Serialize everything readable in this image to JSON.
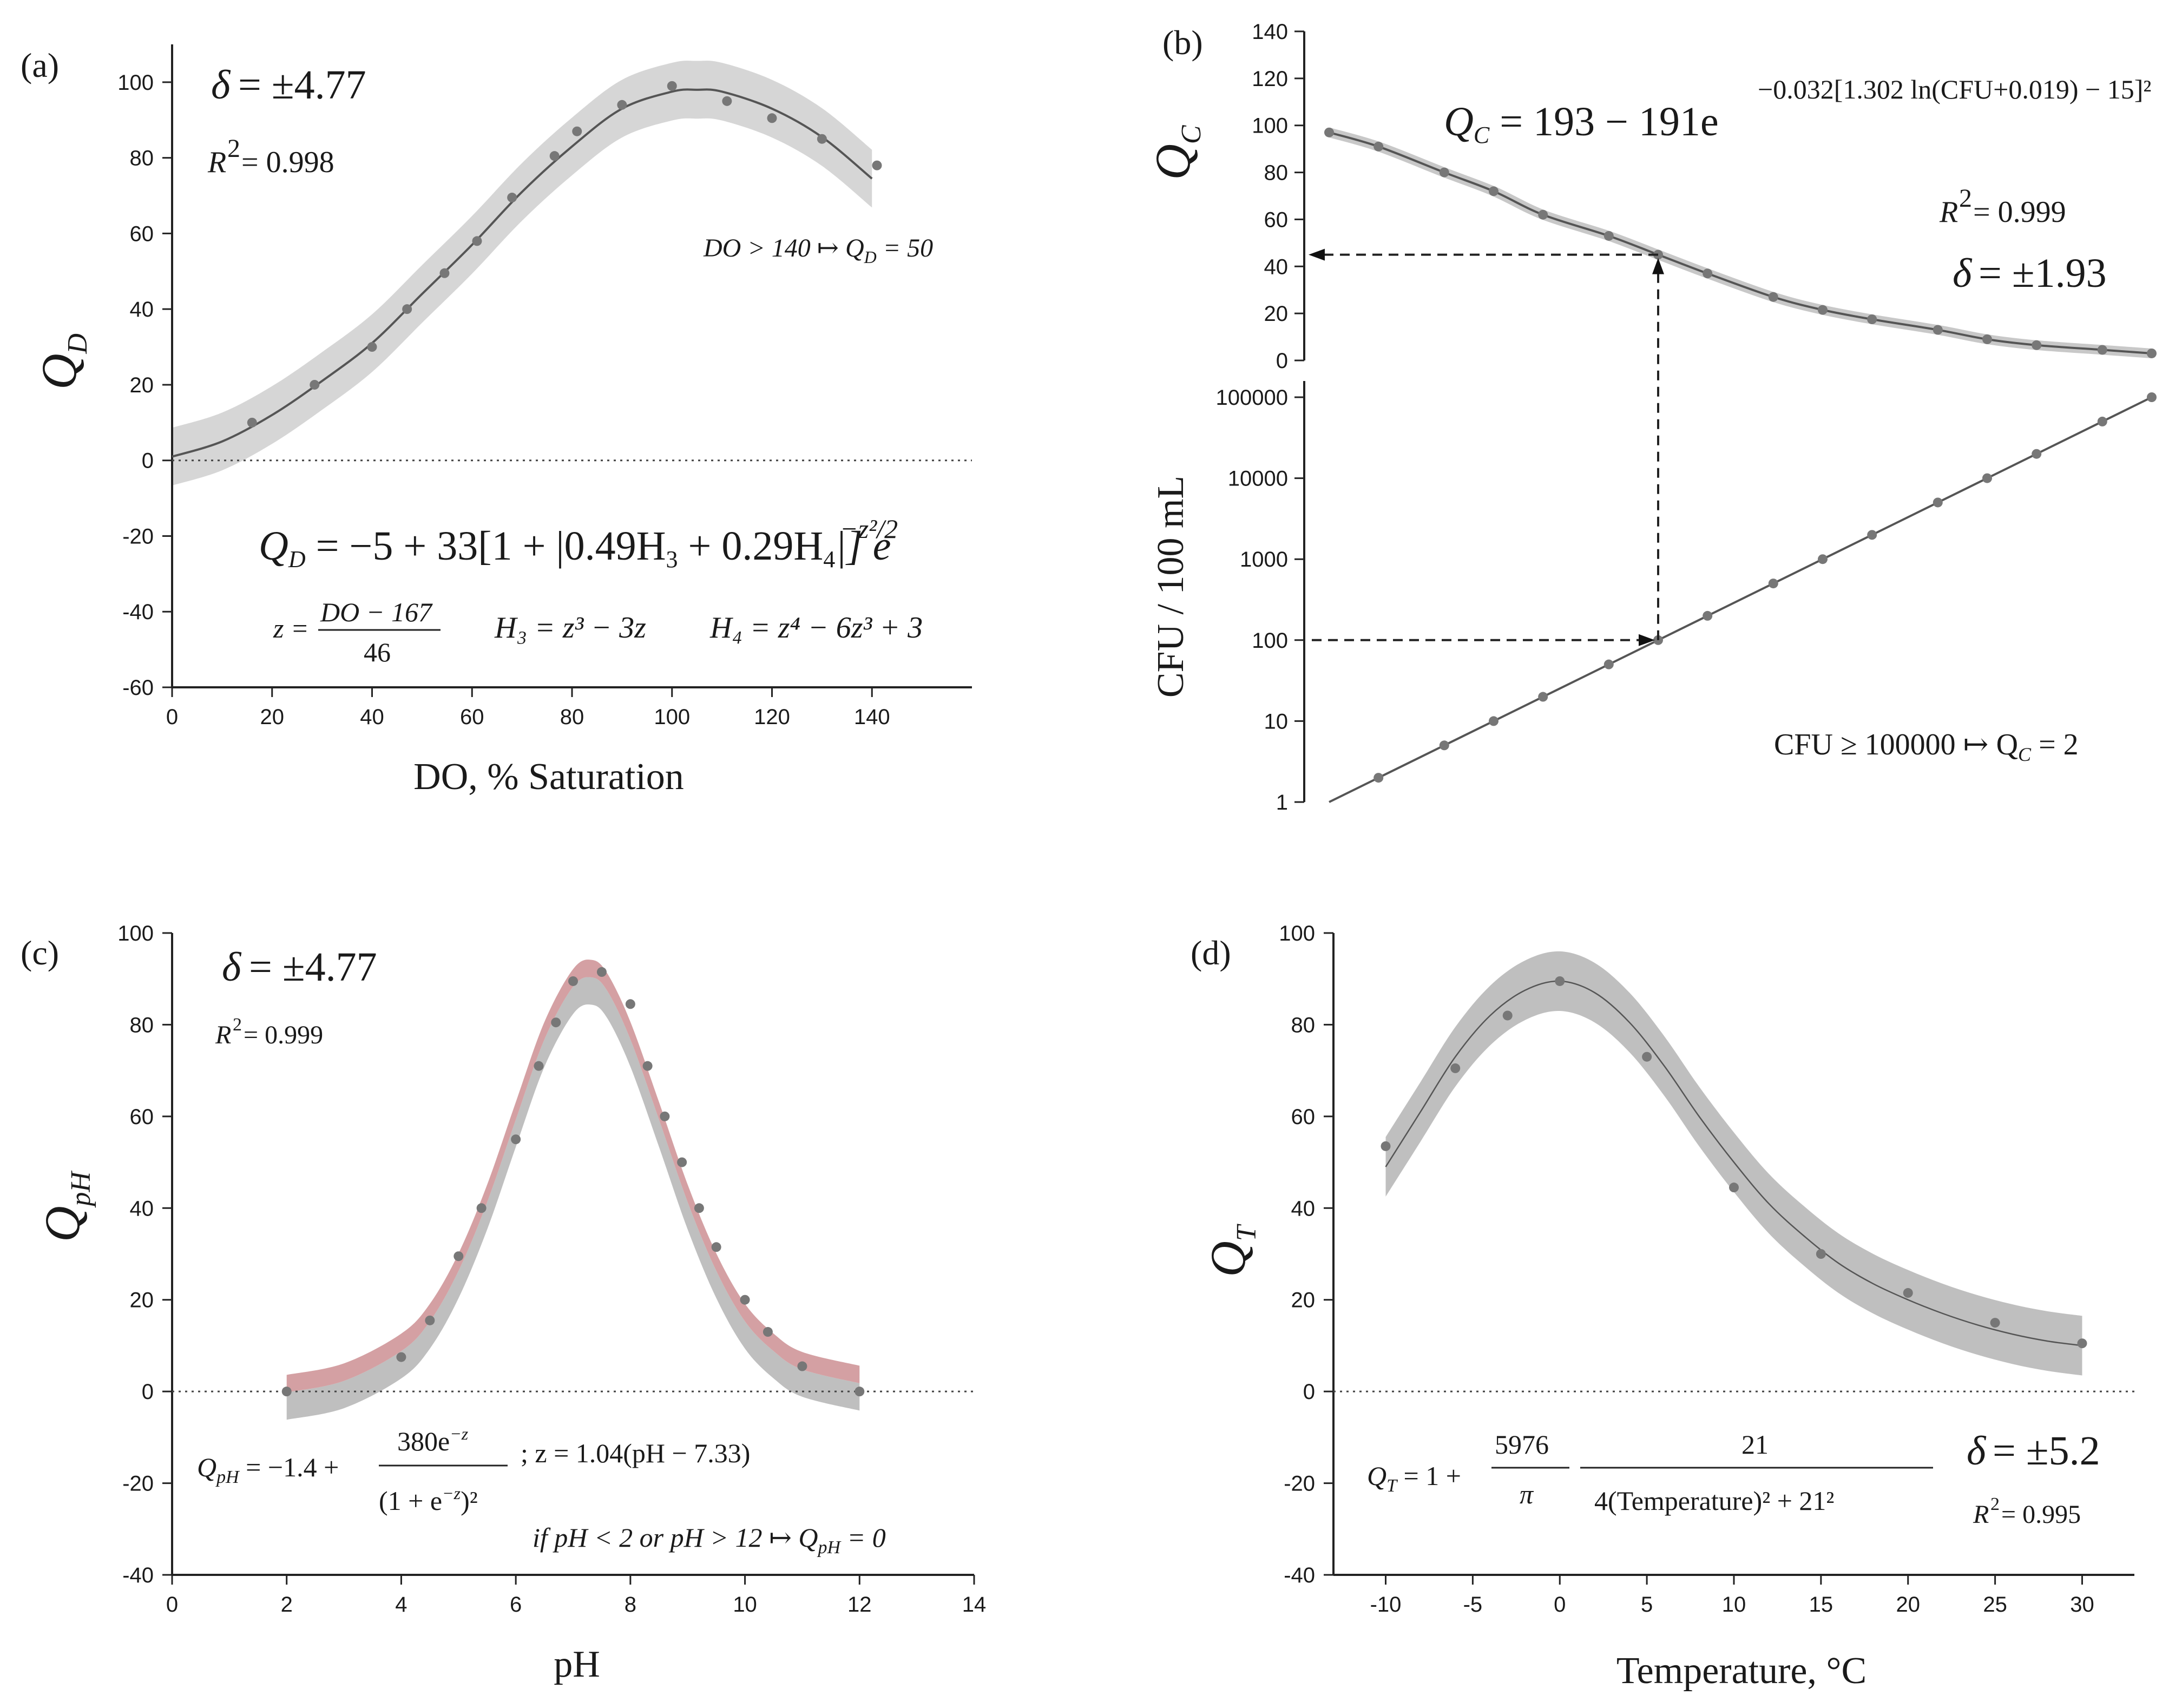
{
  "chart_data": [
    {
      "panel": "(a)",
      "type": "scatter",
      "xlabel": "DO, % Saturation",
      "ylabel_main": "Q",
      "ylabel_sub": "D",
      "xlim": [
        0,
        160
      ],
      "ylim": [
        -60,
        110
      ],
      "xticks": [
        0,
        20,
        40,
        60,
        80,
        100,
        120,
        140
      ],
      "yticks": [
        -60,
        -40,
        -20,
        0,
        20,
        40,
        60,
        80,
        100
      ],
      "points": {
        "x": [
          16,
          28.5,
          40,
          47,
          54.5,
          61,
          68,
          76.5,
          81,
          90,
          100,
          111,
          120,
          130,
          141
        ],
        "y": [
          10,
          20,
          30,
          40,
          49.5,
          58,
          69.5,
          80.5,
          87,
          94,
          99,
          95,
          90.5,
          85,
          78
        ]
      },
      "fit": {
        "x": [
          0,
          10,
          20,
          30,
          40,
          50,
          60,
          70,
          80,
          90,
          100,
          105,
          110,
          120,
          130,
          140
        ],
        "y": [
          1,
          5,
          12,
          21,
          31,
          44,
          57,
          71,
          83,
          93,
          97.5,
          98,
          97.5,
          93,
          85.5,
          74.5
        ],
        "band_halfwidth": 4.77
      },
      "annotations": {
        "delta": "δ = ±4.77",
        "r2": "R² = 0.998",
        "rule": "DO > 140 ↦ Q_D = 50",
        "equation_main": "Q_D = −5 + 33[1 + |0.49H₃ + 0.29H₄|] e^(−z²/2)",
        "equation_vars": "z = (DO − 167)/46     H₃ = z³ − 3z     H₄ = z⁴ − 6z³ + 3"
      }
    },
    {
      "panel": "(b)",
      "type": "line",
      "title": "",
      "top": {
        "ylabel_main": "Q",
        "ylabel_sub": "C",
        "ylim": [
          0,
          140
        ],
        "yticks": [
          0,
          20,
          40,
          60,
          80,
          100,
          120,
          140
        ],
        "x_log10": [
          0,
          0.3,
          0.7,
          1,
          1.3,
          1.7,
          2,
          2.3,
          2.7,
          3,
          3.3,
          3.7,
          4,
          4.3,
          4.7,
          5
        ],
        "y": [
          97,
          91,
          80,
          72,
          62,
          53,
          45,
          37,
          27,
          21.5,
          17.5,
          13,
          9,
          6.5,
          4.5,
          3
        ]
      },
      "bottom": {
        "ylabel": "CFU / 100 mL",
        "yticks": [
          "1",
          "10",
          "100",
          "1000",
          "10000",
          "100000"
        ],
        "points_log10_cfu": [
          0.3,
          0.7,
          1,
          1.3,
          1.7,
          2,
          2.3,
          2.7,
          3,
          3.3,
          3.7,
          4,
          4.3,
          4.7,
          5
        ]
      },
      "guide": {
        "cfu": 100,
        "qc": 45
      },
      "annotations": {
        "equation": "Q_C = 193 − 191e^(−0.032[1.302 ln(CFU+0.019) − 15]²)",
        "r2": "R² = 0.999",
        "delta": "δ = ±1.93",
        "rule": "CFU ≥ 100000 ↦ Q_C = 2"
      }
    },
    {
      "panel": "(c)",
      "type": "scatter",
      "xlabel": "pH",
      "ylabel_main": "Q",
      "ylabel_sub": "pH",
      "xlim": [
        0,
        14
      ],
      "ylim": [
        -40,
        100
      ],
      "xticks": [
        0,
        2,
        4,
        6,
        8,
        10,
        12,
        14
      ],
      "yticks": [
        -40,
        -20,
        0,
        20,
        40,
        60,
        80,
        100
      ],
      "points": {
        "x": [
          2,
          4,
          4.5,
          5,
          5.4,
          6,
          6.4,
          6.7,
          7,
          7.5,
          8,
          8.3,
          8.6,
          8.9,
          9.2,
          9.5,
          10,
          10.4,
          11,
          12
        ],
        "y": [
          0,
          7.5,
          15.5,
          29.5,
          40,
          55,
          71,
          80.5,
          89.5,
          91.5,
          84.5,
          71,
          60,
          50,
          40,
          31.5,
          20,
          13,
          5.5,
          0
        ]
      },
      "fit": {
        "x": [
          2,
          3,
          4,
          4.5,
          5,
          5.5,
          6,
          6.5,
          7,
          7.33,
          7.6,
          8,
          8.5,
          9,
          9.5,
          10,
          10.5,
          11,
          12
        ],
        "y": [
          1,
          3.5,
          10,
          16.5,
          27.5,
          42.5,
          60.5,
          78,
          89.5,
          91.5,
          88.5,
          78,
          60.5,
          42.5,
          27.5,
          16.5,
          10,
          6,
          3
        ],
        "band_halfwidth": 4.77
      },
      "annotations": {
        "delta": "δ = ±4.77",
        "r2": "R² = 0.999",
        "equation": "Q_pH = −1.4 + 380e^(−z)/(1 + e^(−z))² ; z = 1.04(pH − 7.33)",
        "rule": "if pH < 2 or pH > 12 ↦ Q_pH = 0"
      }
    },
    {
      "panel": "(d)",
      "type": "scatter",
      "xlabel": "Temperature, °C",
      "ylabel_main": "Q",
      "ylabel_sub": "T",
      "xlim": [
        -13,
        33
      ],
      "ylim": [
        -40,
        100
      ],
      "xticks": [
        -10,
        -5,
        0,
        5,
        10,
        15,
        20,
        25,
        30
      ],
      "yticks": [
        -40,
        -20,
        0,
        20,
        40,
        60,
        80,
        100
      ],
      "points": {
        "x": [
          -10,
          -6,
          -3,
          0,
          5,
          10,
          15,
          20,
          25,
          30
        ],
        "y": [
          53.5,
          70.5,
          82,
          89.5,
          73,
          44.5,
          30,
          21.5,
          15,
          10.5
        ]
      },
      "fit": {
        "x": [
          -10,
          -8,
          -6,
          -4,
          -2,
          0,
          2,
          4,
          6,
          8,
          10,
          12,
          14,
          16,
          18,
          20,
          22,
          24,
          26,
          28,
          30
        ],
        "y": [
          49,
          61,
          73,
          82,
          87.5,
          89.5,
          87,
          80.5,
          71,
          60,
          50,
          41,
          34,
          28,
          23.5,
          20,
          17,
          14.5,
          12.5,
          11,
          10
        ],
        "band_halfwidth": 5.2
      },
      "annotations": {
        "equation": "Q_T = 1 + (5976/π) · 21 / (4(Temperature)² + 21²)",
        "delta": "δ = ±5.2",
        "r2": "R² = 0.995"
      }
    }
  ],
  "text": {
    "a": {
      "letter": "(a)",
      "delta_lhs": "δ",
      "delta_rhs": "= ±4.77",
      "r2_lhs": "R",
      "r2_sup": "2",
      "r2_rhs": " = 0.998",
      "rule_lhs": "DO > 140 ↦ Q",
      "rule_sub": "D",
      "rule_rhs": " = 50",
      "eq_q": "Q",
      "eq_sub": "D",
      "eq_body": " = −5 + 33[1 + |0.49H",
      "eq_h3": "3",
      "eq_mid": " + 0.29H",
      "eq_h4": "4",
      "eq_close": "|] e",
      "eq_exp": "−z²/2",
      "z_lhs": "z =",
      "z_num": "DO − 167",
      "z_den": "46",
      "h3": "H₃ = z³ − 3z",
      "h4": "H₄ = z⁴ − 6z³ + 3",
      "xlabel": "DO, % Saturation"
    },
    "b": {
      "letter": "(b)",
      "eq_q": "Q",
      "eq_sub": "C",
      "eq_body": " = 193 − 191e",
      "eq_exp": "−0.032[1.302 ln(CFU+0.019) − 15]²",
      "r2_lhs": "R",
      "r2_sup": "2",
      "r2_rhs": " = 0.999",
      "delta_lhs": "δ",
      "delta_rhs": " = ±1.93",
      "rule": "CFU ≥ 100000 ↦ Q",
      "rule_sub": "C",
      "rule_rhs": " = 2",
      "ylabel_bottom": "CFU / 100 mL"
    },
    "c": {
      "letter": "(c)",
      "delta_lhs": "δ",
      "delta_rhs": " = ±4.77",
      "r2_lhs": "R",
      "r2_sup": "2",
      "r2_rhs": " = 0.999",
      "eq_lhs": "Q",
      "eq_sub": "pH",
      "eq_mid": " = −1.4 +",
      "eq_num": "380e",
      "eq_num_exp": "−z",
      "eq_den": "(1 + e",
      "eq_den_exp": "−z",
      "eq_den_close": ")²",
      "eq_z": "; z = 1.04(pH − 7.33)",
      "rule": "if pH < 2 or pH > 12 ↦ Q",
      "rule_sub": "pH",
      "rule_rhs": " = 0",
      "xlabel": "pH"
    },
    "d": {
      "letter": "(d)",
      "eq_lhs": "Q",
      "eq_sub": "T",
      "eq_mid": " = 1 +",
      "eq_frac1_num": "5976",
      "eq_frac1_den": "π",
      "eq_frac2_num": "21",
      "eq_frac2_den": "4(Temperature)² + 21²",
      "delta_lhs": "δ",
      "delta_rhs": " = ±5.2",
      "r2_lhs": "R",
      "r2_sup": "2",
      "r2_rhs": " = 0.995",
      "xlabel": "Temperature, °C"
    }
  }
}
